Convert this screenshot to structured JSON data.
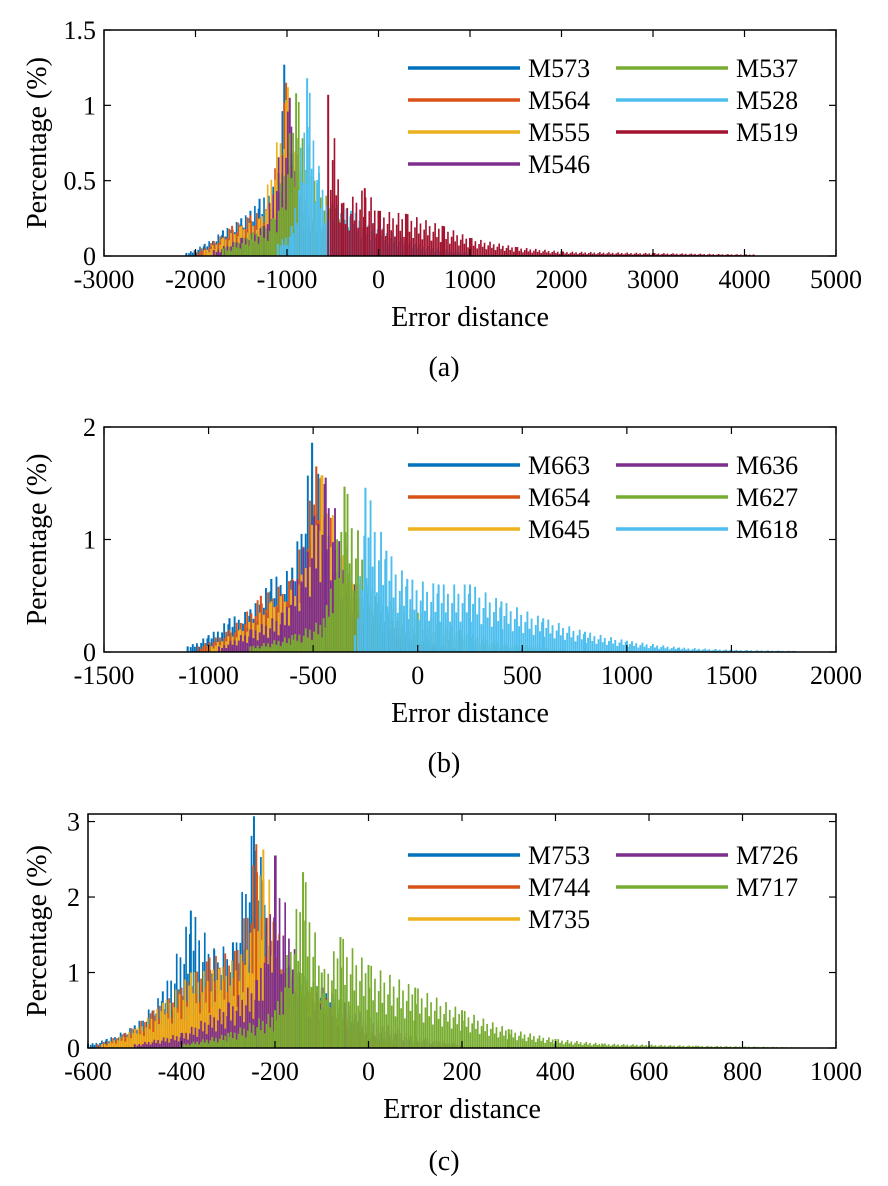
{
  "chart_data": [
    {
      "type": "bar",
      "panel_label": "(a)",
      "xlabel": "Error distance",
      "ylabel": "Percentage (%)",
      "xlim": [
        -3000,
        5000
      ],
      "ylim": [
        0,
        1.5
      ],
      "xticks": [
        -3000,
        -2000,
        -1000,
        0,
        1000,
        2000,
        3000,
        4000,
        5000
      ],
      "xtick_labels": [
        "-3000",
        "-2000",
        "-1000",
        "0",
        "1000",
        "2000",
        "3000",
        "4000",
        "5000"
      ],
      "yticks": [
        0,
        0.5,
        1,
        1.5
      ],
      "ytick_labels": [
        "0",
        "0.5",
        "1",
        "1.5"
      ],
      "grid": false,
      "legend": "top-right, two columns",
      "bin_width": 20,
      "series": [
        {
          "name": "M573",
          "color": "#0072BD",
          "peaks": [
            [
              -2100,
              0.02
            ],
            [
              -1900,
              0.08
            ],
            [
              -1700,
              0.17
            ],
            [
              -1500,
              0.25
            ],
            [
              -1400,
              0.3
            ],
            [
              -1300,
              0.38
            ],
            [
              -1200,
              0.4
            ],
            [
              -1100,
              0.55
            ],
            [
              -1030,
              1.27
            ],
            [
              -950,
              0.6
            ],
            [
              -850,
              0.3
            ],
            [
              -700,
              0.1
            ],
            [
              -500,
              0.03
            ]
          ]
        },
        {
          "name": "M564",
          "color": "#D95319",
          "peaks": [
            [
              -2000,
              0.03
            ],
            [
              -1800,
              0.1
            ],
            [
              -1600,
              0.2
            ],
            [
              -1400,
              0.27
            ],
            [
              -1200,
              0.32
            ],
            [
              -1010,
              1.15
            ],
            [
              -900,
              0.4
            ],
            [
              -750,
              0.15
            ],
            [
              -500,
              0.05
            ]
          ]
        },
        {
          "name": "M555",
          "color": "#EDB120",
          "peaks": [
            [
              -1900,
              0.04
            ],
            [
              -1700,
              0.12
            ],
            [
              -1500,
              0.2
            ],
            [
              -1300,
              0.25
            ],
            [
              -990,
              1.12
            ],
            [
              -880,
              0.45
            ],
            [
              -700,
              0.2
            ],
            [
              -500,
              0.06
            ]
          ]
        },
        {
          "name": "M546",
          "color": "#7E2F8E",
          "peaks": [
            [
              -1800,
              0.04
            ],
            [
              -1500,
              0.12
            ],
            [
              -1250,
              0.2
            ],
            [
              -970,
              1.05
            ],
            [
              -850,
              0.4
            ],
            [
              -650,
              0.25
            ],
            [
              -400,
              0.08
            ],
            [
              0,
              0.02
            ]
          ]
        },
        {
          "name": "M537",
          "color": "#77AC30",
          "peaks": [
            [
              -1700,
              0.05
            ],
            [
              -1400,
              0.15
            ],
            [
              -1150,
              0.25
            ],
            [
              -900,
              1.08
            ],
            [
              -700,
              0.5
            ],
            [
              -400,
              0.25
            ],
            [
              -100,
              0.1
            ],
            [
              300,
              0.03
            ]
          ]
        },
        {
          "name": "M528",
          "color": "#4DBEEE",
          "peaks": [
            [
              -1100,
              0.08
            ],
            [
              -950,
              0.2
            ],
            [
              -780,
              1.18
            ],
            [
              -650,
              0.55
            ],
            [
              -500,
              0.35
            ],
            [
              -300,
              0.3
            ],
            [
              0,
              0.2
            ],
            [
              400,
              0.08
            ],
            [
              1000,
              0.02
            ]
          ]
        },
        {
          "name": "M519",
          "color": "#A2142F",
          "peaks": [
            [
              -550,
              1.07
            ],
            [
              -400,
              0.35
            ],
            [
              -150,
              0.45
            ],
            [
              0,
              0.3
            ],
            [
              300,
              0.28
            ],
            [
              700,
              0.2
            ],
            [
              1000,
              0.12
            ],
            [
              1500,
              0.06
            ],
            [
              2000,
              0.03
            ],
            [
              3000,
              0.02
            ],
            [
              4100,
              0.01
            ]
          ]
        }
      ]
    },
    {
      "type": "bar",
      "panel_label": "(b)",
      "xlabel": "Error distance",
      "ylabel": "Percentage (%)",
      "xlim": [
        -1500,
        2000
      ],
      "ylim": [
        0,
        2
      ],
      "xticks": [
        -1500,
        -1000,
        -500,
        0,
        500,
        1000,
        1500,
        2000
      ],
      "xtick_labels": [
        "-1500",
        "-1000",
        "-500",
        "0",
        "500",
        "1000",
        "1500",
        "2000"
      ],
      "yticks": [
        0,
        1,
        2
      ],
      "ytick_labels": [
        "0",
        "1",
        "2"
      ],
      "grid": false,
      "legend": "top-right, two columns",
      "bin_width": 10,
      "series": [
        {
          "name": "M663",
          "color": "#0072BD",
          "peaks": [
            [
              -1100,
              0.05
            ],
            [
              -1000,
              0.15
            ],
            [
              -900,
              0.3
            ],
            [
              -800,
              0.38
            ],
            [
              -700,
              0.65
            ],
            [
              -600,
              0.75
            ],
            [
              -505,
              1.86
            ],
            [
              -400,
              0.7
            ],
            [
              -300,
              0.4
            ],
            [
              -200,
              0.2
            ],
            [
              -100,
              0.08
            ],
            [
              0,
              0.03
            ]
          ]
        },
        {
          "name": "M654",
          "color": "#D95319",
          "peaks": [
            [
              -1050,
              0.05
            ],
            [
              -900,
              0.2
            ],
            [
              -750,
              0.5
            ],
            [
              -600,
              0.65
            ],
            [
              -485,
              1.65
            ],
            [
              -350,
              0.7
            ],
            [
              -200,
              0.3
            ],
            [
              -50,
              0.1
            ],
            [
              100,
              0.03
            ]
          ]
        },
        {
          "name": "M645",
          "color": "#EDB120",
          "peaks": [
            [
              -1000,
              0.05
            ],
            [
              -850,
              0.2
            ],
            [
              -700,
              0.45
            ],
            [
              -570,
              0.6
            ],
            [
              -460,
              1.57
            ],
            [
              -330,
              0.65
            ],
            [
              -180,
              0.3
            ],
            [
              0,
              0.08
            ],
            [
              150,
              0.02
            ]
          ]
        },
        {
          "name": "M636",
          "color": "#7E2F8E",
          "peaks": [
            [
              -950,
              0.05
            ],
            [
              -800,
              0.2
            ],
            [
              -650,
              0.35
            ],
            [
              -440,
              1.55
            ],
            [
              -300,
              0.6
            ],
            [
              -150,
              0.35
            ],
            [
              0,
              0.12
            ],
            [
              200,
              0.03
            ]
          ]
        },
        {
          "name": "M627",
          "color": "#77AC30",
          "peaks": [
            [
              -800,
              0.05
            ],
            [
              -600,
              0.15
            ],
            [
              -450,
              0.3
            ],
            [
              -350,
              1.47
            ],
            [
              -200,
              0.5
            ],
            [
              0,
              0.35
            ],
            [
              200,
              0.2
            ],
            [
              400,
              0.08
            ],
            [
              700,
              0.02
            ]
          ]
        },
        {
          "name": "M618",
          "color": "#4DBEEE",
          "peaks": [
            [
              -300,
              0.15
            ],
            [
              -250,
              1.46
            ],
            [
              -150,
              0.9
            ],
            [
              -50,
              0.65
            ],
            [
              100,
              0.6
            ],
            [
              250,
              0.6
            ],
            [
              400,
              0.45
            ],
            [
              600,
              0.3
            ],
            [
              800,
              0.18
            ],
            [
              1000,
              0.1
            ],
            [
              1250,
              0.04
            ],
            [
              1500,
              0.02
            ],
            [
              1800,
              0.01
            ]
          ]
        }
      ]
    },
    {
      "type": "bar",
      "panel_label": "(c)",
      "xlabel": "Error distance",
      "ylabel": "Percentage (%)",
      "xlim": [
        -600,
        1000
      ],
      "ylim": [
        0,
        3.1
      ],
      "xticks": [
        -600,
        -400,
        -200,
        0,
        200,
        400,
        600,
        800,
        1000
      ],
      "xtick_labels": [
        "-600",
        "-400",
        "-200",
        "0",
        "200",
        "400",
        "600",
        "800",
        "1000"
      ],
      "yticks": [
        0,
        1,
        2,
        3
      ],
      "ytick_labels": [
        "0",
        "1",
        "2",
        "3"
      ],
      "grid": false,
      "legend": "top-right, two columns",
      "bin_width": 4,
      "series": [
        {
          "name": "M753",
          "color": "#0072BD",
          "peaks": [
            [
              -600,
              0.05
            ],
            [
              -560,
              0.12
            ],
            [
              -500,
              0.3
            ],
            [
              -440,
              0.75
            ],
            [
              -380,
              1.82
            ],
            [
              -330,
              1.3
            ],
            [
              -290,
              1.4
            ],
            [
              -245,
              3.07
            ],
            [
              -200,
              1.2
            ],
            [
              -150,
              1.0
            ],
            [
              -100,
              0.75
            ],
            [
              -50,
              0.6
            ],
            [
              0,
              0.2
            ],
            [
              50,
              0.05
            ]
          ]
        },
        {
          "name": "M744",
          "color": "#D95319",
          "peaks": [
            [
              -580,
              0.05
            ],
            [
              -520,
              0.2
            ],
            [
              -460,
              0.5
            ],
            [
              -400,
              0.8
            ],
            [
              -340,
              1.2
            ],
            [
              -280,
              1.3
            ],
            [
              -240,
              2.7
            ],
            [
              -200,
              1.1
            ],
            [
              -150,
              0.85
            ],
            [
              -100,
              0.6
            ],
            [
              -50,
              0.3
            ],
            [
              0,
              0.1
            ]
          ]
        },
        {
          "name": "M735",
          "color": "#EDB120",
          "peaks": [
            [
              -570,
              0.05
            ],
            [
              -500,
              0.25
            ],
            [
              -440,
              0.6
            ],
            [
              -380,
              1.0
            ],
            [
              -320,
              1.05
            ],
            [
              -260,
              1.3
            ],
            [
              -225,
              2.63
            ],
            [
              -180,
              1.0
            ],
            [
              -120,
              0.8
            ],
            [
              -60,
              0.5
            ],
            [
              0,
              0.2
            ],
            [
              60,
              0.05
            ]
          ]
        },
        {
          "name": "M726",
          "color": "#7E2F8E",
          "peaks": [
            [
              -500,
              0.05
            ],
            [
              -400,
              0.2
            ],
            [
              -300,
              0.6
            ],
            [
              -240,
              0.9
            ],
            [
              -200,
              2.55
            ],
            [
              -150,
              1.0
            ],
            [
              -100,
              0.8
            ],
            [
              -50,
              0.6
            ],
            [
              0,
              0.4
            ],
            [
              100,
              0.15
            ],
            [
              200,
              0.05
            ]
          ]
        },
        {
          "name": "M717",
          "color": "#77AC30",
          "peaks": [
            [
              -400,
              0.05
            ],
            [
              -300,
              0.2
            ],
            [
              -200,
              0.5
            ],
            [
              -140,
              2.33
            ],
            [
              -100,
              1.0
            ],
            [
              -60,
              1.47
            ],
            [
              0,
              1.1
            ],
            [
              100,
              0.8
            ],
            [
              200,
              0.5
            ],
            [
              300,
              0.25
            ],
            [
              400,
              0.12
            ],
            [
              500,
              0.06
            ],
            [
              700,
              0.03
            ],
            [
              920,
              0.01
            ]
          ]
        }
      ]
    }
  ]
}
